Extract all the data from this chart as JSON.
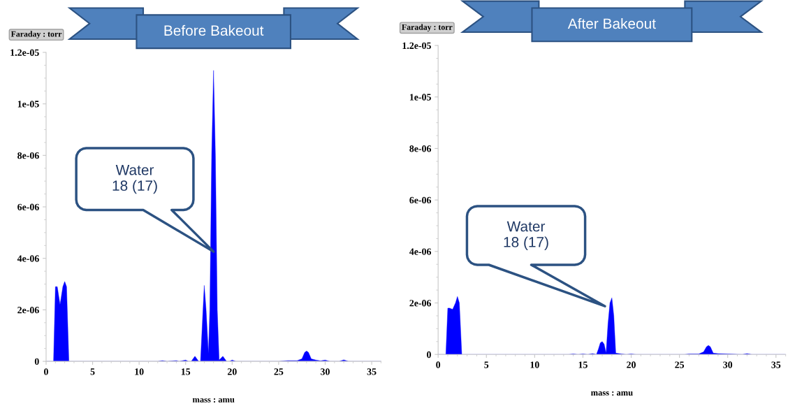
{
  "chart_data": [
    {
      "type": "area",
      "title": "Before Bakeout",
      "xlabel": "mass : amu",
      "ylabel": "Faraday : torr",
      "color": "#0000ff",
      "grid": false,
      "annotations": [
        "Water\n18 (17)"
      ],
      "x": [
        0,
        0.8,
        1.0,
        1.2,
        1.5,
        1.8,
        2.0,
        2.2,
        2.45,
        3,
        12,
        12.5,
        13,
        14,
        14.3,
        15,
        15.3,
        15.6,
        16,
        16.4,
        16.6,
        16.8,
        17,
        17.2,
        17.45,
        17.6,
        17.8,
        18,
        18.2,
        18.4,
        18.6,
        19,
        19.4,
        19.7,
        20,
        20.4,
        25,
        26,
        27,
        27.5,
        27.8,
        28,
        28.2,
        28.5,
        29,
        29.5,
        30,
        30.5,
        31.5,
        32,
        32.5,
        36
      ],
      "values": [
        0,
        0,
        2.9e-06,
        2.9e-06,
        2.2e-06,
        2.9e-06,
        3.1e-06,
        2.9e-06,
        0,
        0,
        0,
        3e-08,
        0,
        3e-08,
        0,
        5e-08,
        0,
        0,
        2e-07,
        0,
        0,
        1.5e-06,
        2.95e-06,
        2e-06,
        3e-07,
        2e-06,
        8e-06,
        1.13e-05,
        8e-06,
        2e-06,
        5e-08,
        2e-07,
        0,
        0,
        5e-08,
        0,
        0,
        3e-08,
        3e-08,
        1e-07,
        3.5e-07,
        4e-07,
        3.5e-07,
        1e-07,
        5e-08,
        2e-08,
        5e-08,
        0,
        0,
        6e-08,
        0,
        0
      ],
      "xlim": [
        0,
        36
      ],
      "xticks": [
        0,
        5,
        10,
        15,
        20,
        25,
        30,
        35
      ],
      "ylim": [
        0,
        1.2e-05
      ],
      "yticks": [
        0,
        2e-06,
        4e-06,
        6e-06,
        8e-06,
        1e-05,
        1.2e-05
      ]
    },
    {
      "type": "area",
      "title": "After Bakeout",
      "xlabel": "mass : amu",
      "ylabel": "Faraday : torr",
      "color": "#0000ff",
      "grid": false,
      "annotations": [
        "Water\n18 (17)"
      ],
      "x": [
        0,
        0.8,
        1.0,
        1.2,
        1.5,
        1.8,
        2.0,
        2.2,
        2.45,
        3,
        13.5,
        14,
        14.5,
        15,
        15.5,
        16,
        16.4,
        16.6,
        16.8,
        17,
        17.2,
        17.4,
        17.6,
        17.8,
        18,
        18.2,
        18.4,
        19,
        19.5,
        20,
        20.5,
        25.5,
        26,
        27,
        27.5,
        27.8,
        28,
        28.2,
        28.5,
        29,
        30,
        31.5,
        32,
        32.5,
        36
      ],
      "values": [
        0,
        0,
        1.8e-06,
        1.8e-06,
        1.75e-06,
        2e-06,
        2.25e-06,
        2e-06,
        0,
        0,
        0,
        2e-08,
        0,
        2e-08,
        0,
        3e-08,
        0,
        2e-07,
        4.5e-07,
        5e-07,
        4e-07,
        5e-08,
        1.2e-06,
        2e-06,
        2.2e-06,
        1.5e-06,
        5e-08,
        2e-08,
        0,
        2e-08,
        0,
        0,
        2e-08,
        2e-08,
        1e-07,
        3e-07,
        3.5e-07,
        3e-07,
        5e-08,
        3e-08,
        2e-08,
        0,
        3e-08,
        0,
        0
      ],
      "xlim": [
        0,
        36
      ],
      "xticks": [
        0,
        5,
        10,
        15,
        20,
        25,
        30,
        35
      ],
      "ylim": [
        0,
        1.2e-05
      ],
      "yticks": [
        0,
        2e-06,
        4e-06,
        6e-06,
        8e-06,
        1e-05,
        1.2e-05
      ]
    }
  ]
}
